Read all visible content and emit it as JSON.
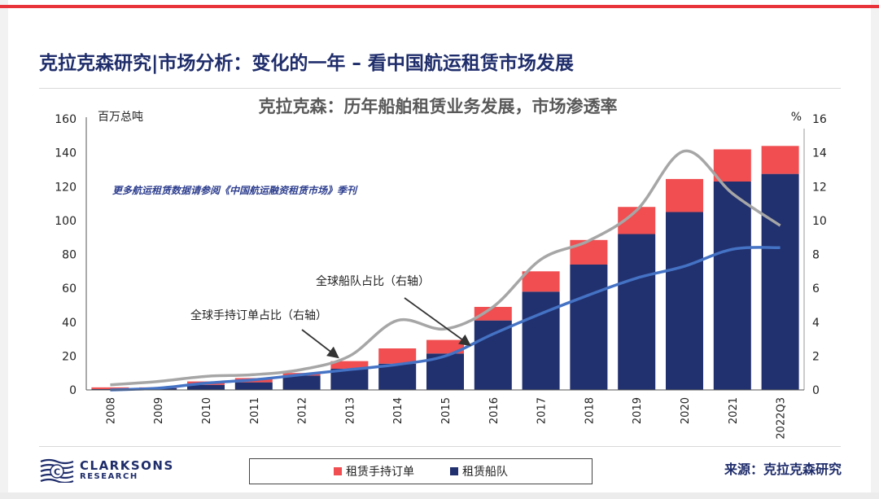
{
  "title": "克拉克森研究|市场分析：变化的一年 – 看中国航运租赁市场发展",
  "source": "来源：克拉克森研究",
  "logo": {
    "line1": "CLARKSONS",
    "line2": "RESEARCH"
  },
  "colors": {
    "fleet": "#21306e",
    "orderbook": "#f04e50",
    "orderbook_share": "#a6a6a6",
    "fleet_share": "#4472c4",
    "title": "#1f2d6b",
    "accent": "#e8333a"
  },
  "chart_data": {
    "type": "bar",
    "stacked": true,
    "title": "克拉克森：历年船舶租赁业务发展，市场渗透率",
    "ylabel": "百万总吨",
    "y2label": "%",
    "ylim": [
      0,
      160
    ],
    "y2lim": [
      0,
      16
    ],
    "yticks": [
      0,
      20,
      40,
      60,
      80,
      100,
      120,
      140,
      160
    ],
    "y2ticks": [
      0,
      2,
      4,
      6,
      8,
      10,
      12,
      14,
      16
    ],
    "grid": false,
    "legend_position": "bottom",
    "note": "更多航运租赁数据请参阅《中国航运融资租赁市场》季刊",
    "categories": [
      "2008",
      "2009",
      "2010",
      "2011",
      "2012",
      "2013",
      "2014",
      "2015",
      "2016",
      "2017",
      "2018",
      "2019",
      "2020",
      "2021",
      "2022Q3"
    ],
    "series": [
      {
        "name": "租赁船队",
        "axis": "left",
        "kind": "bar",
        "values": [
          0.5,
          1,
          3,
          4.5,
          8.5,
          12.5,
          15.5,
          21.5,
          41,
          58,
          74,
          92,
          105,
          123,
          127.5
        ]
      },
      {
        "name": "租赁手持订单",
        "axis": "left",
        "kind": "bar",
        "values": [
          1,
          0.5,
          2,
          2.5,
          1.5,
          4.5,
          9,
          8,
          8,
          12,
          14.5,
          16,
          19.5,
          19,
          16.5
        ]
      },
      {
        "name": "全球手持订单占比（右轴）",
        "axis": "right",
        "kind": "line",
        "values": [
          0.3,
          0.5,
          0.8,
          0.9,
          1.2,
          2,
          4.1,
          3.6,
          4.9,
          7.7,
          8.8,
          10.6,
          14.1,
          11.6,
          9.7
        ]
      },
      {
        "name": "全球船队占比（右轴）",
        "axis": "right",
        "kind": "line",
        "values": [
          0,
          0.1,
          0.4,
          0.6,
          0.9,
          1.2,
          1.5,
          2,
          3.3,
          4.5,
          5.6,
          6.6,
          7.3,
          8.3,
          8.4
        ]
      }
    ],
    "annotations": [
      "全球手持订单占比（右轴）",
      "全球船队占比（右轴）"
    ]
  }
}
